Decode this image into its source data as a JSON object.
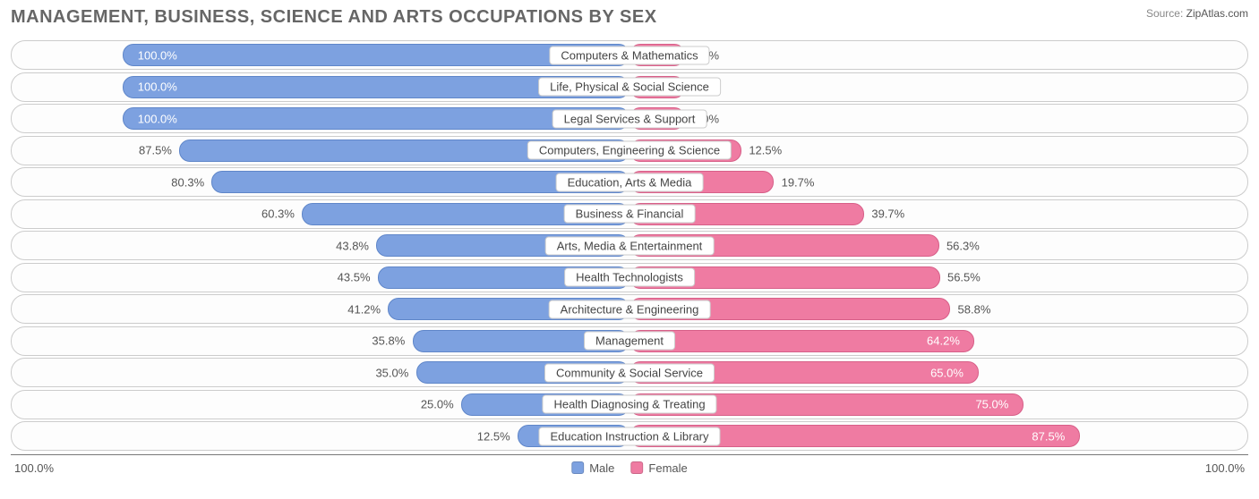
{
  "title": "MANAGEMENT, BUSINESS, SCIENCE AND ARTS OCCUPATIONS BY SEX",
  "source_label": "Source:",
  "source_value": "ZipAtlas.com",
  "axis_left": "100.0%",
  "axis_right": "100.0%",
  "legend": {
    "male": "Male",
    "female": "Female"
  },
  "colors": {
    "male_fill": "#7da1e0",
    "male_border": "#5f86c9",
    "female_fill": "#ef7ba2",
    "female_border": "#d75f88",
    "row_border": "#cccccc",
    "axis_line": "#777777",
    "text": "#555555"
  },
  "chart": {
    "type": "diverging-bar",
    "center_gap_pct": 18,
    "rows": [
      {
        "label": "Computers & Mathematics",
        "male": 100.0,
        "female": 0.0
      },
      {
        "label": "Life, Physical & Social Science",
        "male": 100.0,
        "female": 0.0
      },
      {
        "label": "Legal Services & Support",
        "male": 100.0,
        "female": 0.0
      },
      {
        "label": "Computers, Engineering & Science",
        "male": 87.5,
        "female": 12.5
      },
      {
        "label": "Education, Arts & Media",
        "male": 80.3,
        "female": 19.7
      },
      {
        "label": "Business & Financial",
        "male": 60.3,
        "female": 39.7
      },
      {
        "label": "Arts, Media & Entertainment",
        "male": 43.8,
        "female": 56.3
      },
      {
        "label": "Health Technologists",
        "male": 43.5,
        "female": 56.5
      },
      {
        "label": "Architecture & Engineering",
        "male": 41.2,
        "female": 58.8
      },
      {
        "label": "Management",
        "male": 35.8,
        "female": 64.2
      },
      {
        "label": "Community & Social Service",
        "male": 35.0,
        "female": 65.0
      },
      {
        "label": "Health Diagnosing & Treating",
        "male": 25.0,
        "female": 75.0
      },
      {
        "label": "Education Instruction & Library",
        "male": 12.5,
        "female": 87.5
      }
    ]
  }
}
